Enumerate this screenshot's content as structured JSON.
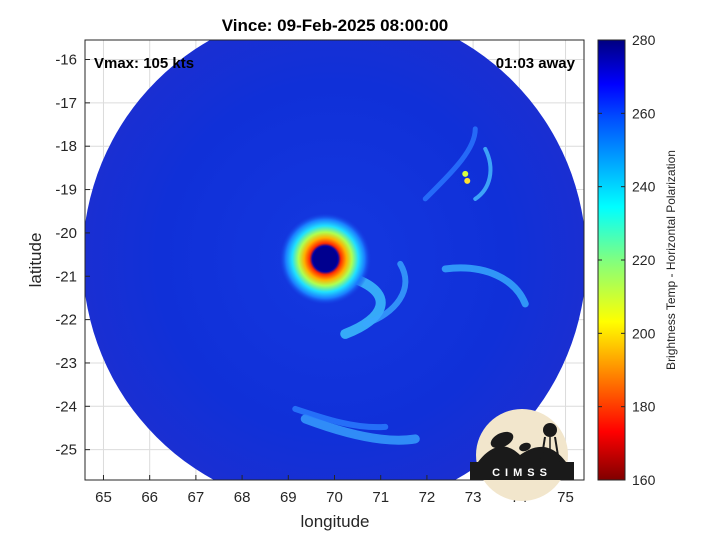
{
  "chart_data": {
    "type": "heatmap",
    "title": "Vince: 09-Feb-2025 08:00:00",
    "xlabel": "longitude",
    "ylabel": "latitude",
    "xlim": [
      64.6,
      75.4
    ],
    "ylim": [
      -25.7,
      -15.55
    ],
    "x_ticks": [
      65,
      66,
      67,
      68,
      69,
      70,
      71,
      72,
      73,
      74,
      75
    ],
    "y_ticks": [
      -16,
      -17,
      -18,
      -19,
      -20,
      -21,
      -22,
      -23,
      -24,
      -25
    ],
    "grid": true,
    "annotations": {
      "vmax": "Vmax: 105 kts",
      "time_away": "01:03 away"
    },
    "colorbar": {
      "label": "Brightness Temp - Horizontal Polarization",
      "range": [
        160,
        280
      ],
      "ticks": [
        280,
        260,
        240,
        220,
        200,
        180,
        160
      ],
      "colormap": "jet"
    },
    "swath": {
      "center_lon": 70.0,
      "center_lat": -20.6,
      "radius_deg": 5.45
    },
    "storm_eye": {
      "lon": 69.8,
      "lat": -20.6,
      "eye_temp": 275,
      "eyewall_temp": 192
    },
    "logo_text": "CIMSS"
  }
}
